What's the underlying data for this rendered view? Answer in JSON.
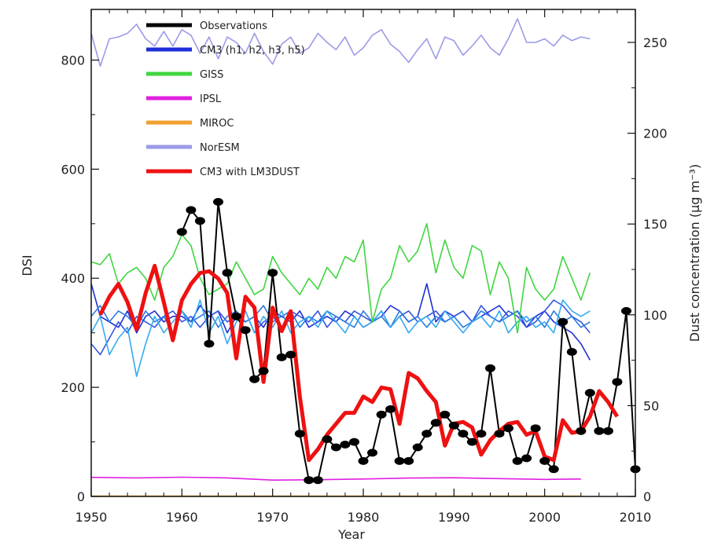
{
  "chart_data": {
    "type": "line",
    "xlabel": "Year",
    "ylabel_left": "DSI",
    "ylabel_right": "Dust concentration (μg m⁻³)",
    "xlim": [
      1950,
      2010
    ],
    "ylim_left": [
      0,
      900
    ],
    "ylim_right": [
      0,
      270
    ],
    "x_ticks": [
      "1950",
      "1960",
      "1970",
      "1980",
      "1990",
      "2000",
      "2010"
    ],
    "y_left_ticks": [
      "0",
      "200",
      "400",
      "600",
      "800"
    ],
    "y_right_ticks": [
      "0",
      "50",
      "100",
      "150",
      "200",
      "250"
    ],
    "legend_position": "top-left",
    "series": [
      {
        "name": "Observations",
        "axis": "left",
        "color": "#000000",
        "markers": true,
        "x": [
          1960,
          1961,
          1962,
          1963,
          1964,
          1965,
          1966,
          1967,
          1968,
          1969,
          1970,
          1971,
          1972,
          1973,
          1974,
          1975,
          1976,
          1977,
          1978,
          1979,
          1980,
          1981,
          1982,
          1983,
          1984,
          1985,
          1986,
          1987,
          1988,
          1989,
          1990,
          1991,
          1992,
          1993,
          1994,
          1995,
          1996,
          1997,
          1998,
          1999,
          2000,
          2001,
          2002,
          2003,
          2004,
          2005,
          2006,
          2007,
          2008,
          2009,
          2010
        ],
        "y": [
          485,
          525,
          505,
          280,
          540,
          410,
          330,
          305,
          215,
          230,
          410,
          255,
          260,
          115,
          30,
          30,
          105,
          90,
          95,
          100,
          65,
          80,
          150,
          160,
          65,
          65,
          90,
          115,
          135,
          150,
          130,
          115,
          100,
          115,
          235,
          115,
          125,
          65,
          70,
          125,
          65,
          50,
          320,
          265,
          120,
          190,
          120,
          120,
          210,
          340,
          50
        ]
      },
      {
        "name": "CM3 (h1, h2, h3, h5)",
        "axis": "left",
        "color": "#1d2fd6",
        "x": [
          1950,
          1951,
          1952,
          1953,
          1954,
          1955,
          1956,
          1957,
          1958,
          1959,
          1960,
          1961,
          1962,
          1963,
          1964,
          1965,
          1966,
          1967,
          1968,
          1969,
          1970,
          1971,
          1972,
          1973,
          1974,
          1975,
          1976,
          1977,
          1978,
          1979,
          1980,
          1981,
          1982,
          1983,
          1984,
          1985,
          1986,
          1987,
          1988,
          1989,
          1990,
          1991,
          1992,
          1993,
          1994,
          1995,
          1996,
          1997,
          1998,
          1999,
          2000,
          2001,
          2002,
          2003,
          2004,
          2005
        ],
        "y": [
          390,
          330,
          320,
          310,
          340,
          300,
          330,
          340,
          320,
          330,
          330,
          320,
          350,
          330,
          340,
          300,
          330,
          320,
          330,
          310,
          340,
          330,
          320,
          340,
          310,
          320,
          330,
          320,
          340,
          330,
          310,
          320,
          330,
          350,
          340,
          320,
          330,
          390,
          320,
          340,
          330,
          340,
          320,
          330,
          340,
          350,
          330,
          340,
          310,
          330,
          340,
          320,
          310,
          300,
          280,
          250
        ]
      },
      {
        "name": "",
        "axis": "left",
        "color": "#3555e0",
        "x": [
          1950,
          1951,
          1952,
          1953,
          1954,
          1955,
          1956,
          1957,
          1958,
          1959,
          1960,
          1961,
          1962,
          1963,
          1964,
          1965,
          1966,
          1967,
          1968,
          1969,
          1970,
          1971,
          1972,
          1973,
          1974,
          1975,
          1976,
          1977,
          1978,
          1979,
          1980,
          1981,
          1982,
          1983,
          1984,
          1985,
          1986,
          1987,
          1988,
          1989,
          1990,
          1991,
          1992,
          1993,
          1994,
          1995,
          1996,
          1997,
          1998,
          1999,
          2000,
          2001,
          2002,
          2003,
          2004,
          2005
        ],
        "y": [
          280,
          260,
          290,
          320,
          300,
          330,
          320,
          310,
          330,
          340,
          320,
          330,
          310,
          330,
          340,
          320,
          330,
          340,
          300,
          320,
          330,
          310,
          340,
          330,
          320,
          340,
          310,
          330,
          320,
          340,
          330,
          320,
          340,
          310,
          330,
          340,
          320,
          330,
          340,
          320,
          330,
          340,
          320,
          350,
          330,
          320,
          340,
          330,
          310,
          320,
          340,
          360,
          350,
          330,
          320,
          300
        ]
      },
      {
        "name": "",
        "axis": "left",
        "color": "#2b7be0",
        "x": [
          1950,
          1951,
          1952,
          1953,
          1954,
          1955,
          1956,
          1957,
          1958,
          1959,
          1960,
          1961,
          1962,
          1963,
          1964,
          1965,
          1966,
          1967,
          1968,
          1969,
          1970,
          1971,
          1972,
          1973,
          1974,
          1975,
          1976,
          1977,
          1978,
          1979,
          1980,
          1981,
          1982,
          1983,
          1984,
          1985,
          1986,
          1987,
          1988,
          1989,
          1990,
          1991,
          1992,
          1993,
          1994,
          1995,
          1996,
          1997,
          1998,
          1999,
          2000,
          2001,
          2002,
          2003,
          2004,
          2005
        ],
        "y": [
          330,
          350,
          320,
          340,
          330,
          310,
          340,
          320,
          330,
          300,
          340,
          320,
          330,
          340,
          310,
          330,
          340,
          320,
          330,
          350,
          320,
          330,
          340,
          310,
          330,
          320,
          340,
          330,
          320,
          310,
          340,
          320,
          330,
          310,
          340,
          320,
          330,
          310,
          330,
          320,
          330,
          310,
          320,
          340,
          330,
          320,
          330,
          340,
          320,
          330,
          310,
          340,
          320,
          330,
          310,
          320
        ]
      },
      {
        "name": "",
        "axis": "left",
        "color": "#35aaf0",
        "x": [
          1950,
          1951,
          1952,
          1953,
          1954,
          1955,
          1956,
          1957,
          1958,
          1959,
          1960,
          1961,
          1962,
          1963,
          1964,
          1965,
          1966,
          1967,
          1968,
          1969,
          1970,
          1971,
          1972,
          1973,
          1974,
          1975,
          1976,
          1977,
          1978,
          1979,
          1980,
          1981,
          1982,
          1983,
          1984,
          1985,
          1986,
          1987,
          1988,
          1989,
          1990,
          1991,
          1992,
          1993,
          1994,
          1995,
          1996,
          1997,
          1998,
          1999,
          2000,
          2001,
          2002,
          2003,
          2004,
          2005
        ],
        "y": [
          300,
          330,
          260,
          290,
          310,
          220,
          280,
          330,
          300,
          320,
          340,
          310,
          360,
          300,
          330,
          280,
          320,
          340,
          300,
          330,
          310,
          340,
          300,
          320,
          330,
          310,
          340,
          320,
          300,
          330,
          310,
          320,
          340,
          310,
          330,
          300,
          320,
          330,
          310,
          340,
          320,
          300,
          320,
          330,
          310,
          340,
          300,
          320,
          330,
          310,
          320,
          300,
          360,
          340,
          330,
          340
        ]
      },
      {
        "name": "GISS",
        "axis": "left",
        "color": "#3fd63f",
        "x": [
          1950,
          1951,
          1952,
          1953,
          1954,
          1955,
          1956,
          1957,
          1958,
          1959,
          1960,
          1961,
          1962,
          1963,
          1964,
          1965,
          1966,
          1967,
          1968,
          1969,
          1970,
          1971,
          1972,
          1973,
          1974,
          1975,
          1976,
          1977,
          1978,
          1979,
          1980,
          1981,
          1982,
          1983,
          1984,
          1985,
          1986,
          1987,
          1988,
          1989,
          1990,
          1991,
          1992,
          1993,
          1994,
          1995,
          1996,
          1997,
          1998,
          1999,
          2000,
          2001,
          2002,
          2003,
          2004,
          2005
        ],
        "y": [
          430,
          425,
          445,
          390,
          410,
          420,
          400,
          360,
          420,
          440,
          480,
          460,
          400,
          370,
          380,
          390,
          430,
          400,
          370,
          380,
          440,
          410,
          390,
          370,
          400,
          380,
          420,
          400,
          440,
          430,
          470,
          320,
          380,
          400,
          460,
          430,
          450,
          500,
          410,
          470,
          420,
          400,
          460,
          450,
          370,
          430,
          400,
          300,
          420,
          380,
          360,
          380,
          440,
          400,
          360,
          410
        ]
      },
      {
        "name": "IPSL",
        "axis": "right",
        "color": "#e020e0",
        "x": [
          1950,
          1955,
          1960,
          1965,
          1970,
          1975,
          1980,
          1985,
          1990,
          1995,
          2000,
          2004
        ],
        "y": [
          10.5,
          10.2,
          10.6,
          10.2,
          9.0,
          9.2,
          9.6,
          10.1,
          10.3,
          9.8,
          9.4,
          9.6
        ]
      },
      {
        "name": "MIROC",
        "axis": "right",
        "color": "#f0a030",
        "x": [
          1950,
          2004
        ],
        "y": [
          0.2,
          0.2
        ]
      },
      {
        "name": "NorESM",
        "axis": "right",
        "color": "#9b9be8",
        "x": [
          1950,
          1951,
          1952,
          1953,
          1954,
          1955,
          1956,
          1957,
          1958,
          1959,
          1960,
          1961,
          1962,
          1963,
          1964,
          1965,
          1966,
          1967,
          1968,
          1969,
          1970,
          1971,
          1972,
          1973,
          1974,
          1975,
          1976,
          1977,
          1978,
          1979,
          1980,
          1981,
          1982,
          1983,
          1984,
          1985,
          1986,
          1987,
          1988,
          1989,
          1990,
          1991,
          1992,
          1993,
          1994,
          1995,
          1996,
          1997,
          1998,
          1999,
          2000,
          2001,
          2002,
          2003,
          2004,
          2005
        ],
        "y": [
          255,
          237,
          252,
          253,
          255,
          260,
          252,
          248,
          256,
          248,
          257,
          254,
          244,
          253,
          241,
          253,
          250,
          244,
          255,
          245,
          238,
          249,
          253,
          244,
          247,
          255,
          250,
          246,
          253,
          243,
          247,
          254,
          257,
          249,
          245,
          239,
          246,
          252,
          241,
          253,
          251,
          243,
          248,
          254,
          247,
          243,
          252,
          263,
          250,
          250,
          252,
          248,
          254,
          251,
          253,
          252
        ]
      },
      {
        "name": "CM3 with LM3DUST",
        "axis": "right",
        "color": "#ee1111",
        "x": [
          1951,
          1952,
          1953,
          1954,
          1955,
          1956,
          1957,
          1958,
          1959,
          1960,
          1961,
          1962,
          1963,
          1964,
          1965,
          1966,
          1967,
          1968,
          1969,
          1970,
          1971,
          1972,
          1973,
          1974,
          1975,
          1976,
          1977,
          1978,
          1979,
          1980,
          1981,
          1982,
          1983,
          1984,
          1985,
          1986,
          1987,
          1988,
          1989,
          1990,
          1991,
          1992,
          1993,
          1994,
          1995,
          1996,
          1997,
          1998,
          1999,
          2000,
          2001,
          2002,
          2003,
          2004,
          2005,
          2006,
          2007,
          2008
        ],
        "y": [
          100,
          110,
          117,
          107,
          92,
          112,
          127,
          107,
          86,
          108,
          117,
          123,
          124,
          120,
          112,
          76,
          110,
          104,
          63,
          104,
          91,
          102,
          55,
          20,
          26,
          34,
          40,
          46,
          46,
          55,
          52,
          60,
          59,
          40,
          68,
          65,
          58,
          52,
          28,
          40,
          41,
          38,
          23,
          31,
          36,
          40,
          41,
          34,
          36,
          22,
          20,
          42,
          35,
          36,
          44,
          58,
          52,
          44
        ]
      }
    ]
  }
}
